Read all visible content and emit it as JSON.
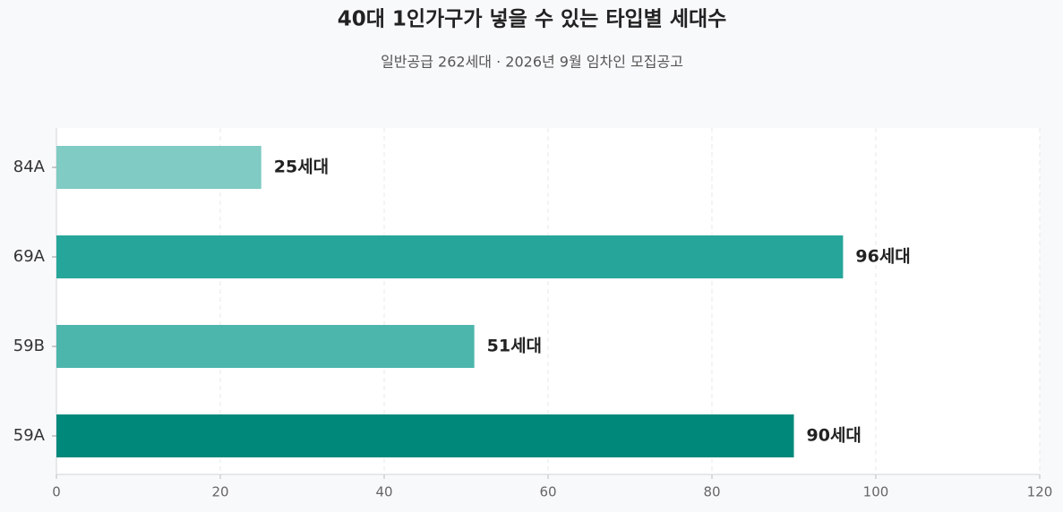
{
  "chart_data": {
    "type": "hbar",
    "title": "40대 1인가구가 넣을 수 있는 타입별 세대수",
    "subtitle": "일반공급 262세대 · 2026년 9월 임차인 모집공고",
    "categories": [
      "84A",
      "69A",
      "59B",
      "59A"
    ],
    "values": [
      25,
      96,
      51,
      90
    ],
    "value_labels": [
      "25세대",
      "96세대",
      "51세대",
      "90세대"
    ],
    "colors": [
      "#80cbc4",
      "#26a69a",
      "#4db6ac",
      "#00897b"
    ],
    "xlim": [
      0,
      120
    ],
    "xticks": [
      0,
      20,
      40,
      60,
      80,
      100,
      120
    ],
    "grid": true
  }
}
